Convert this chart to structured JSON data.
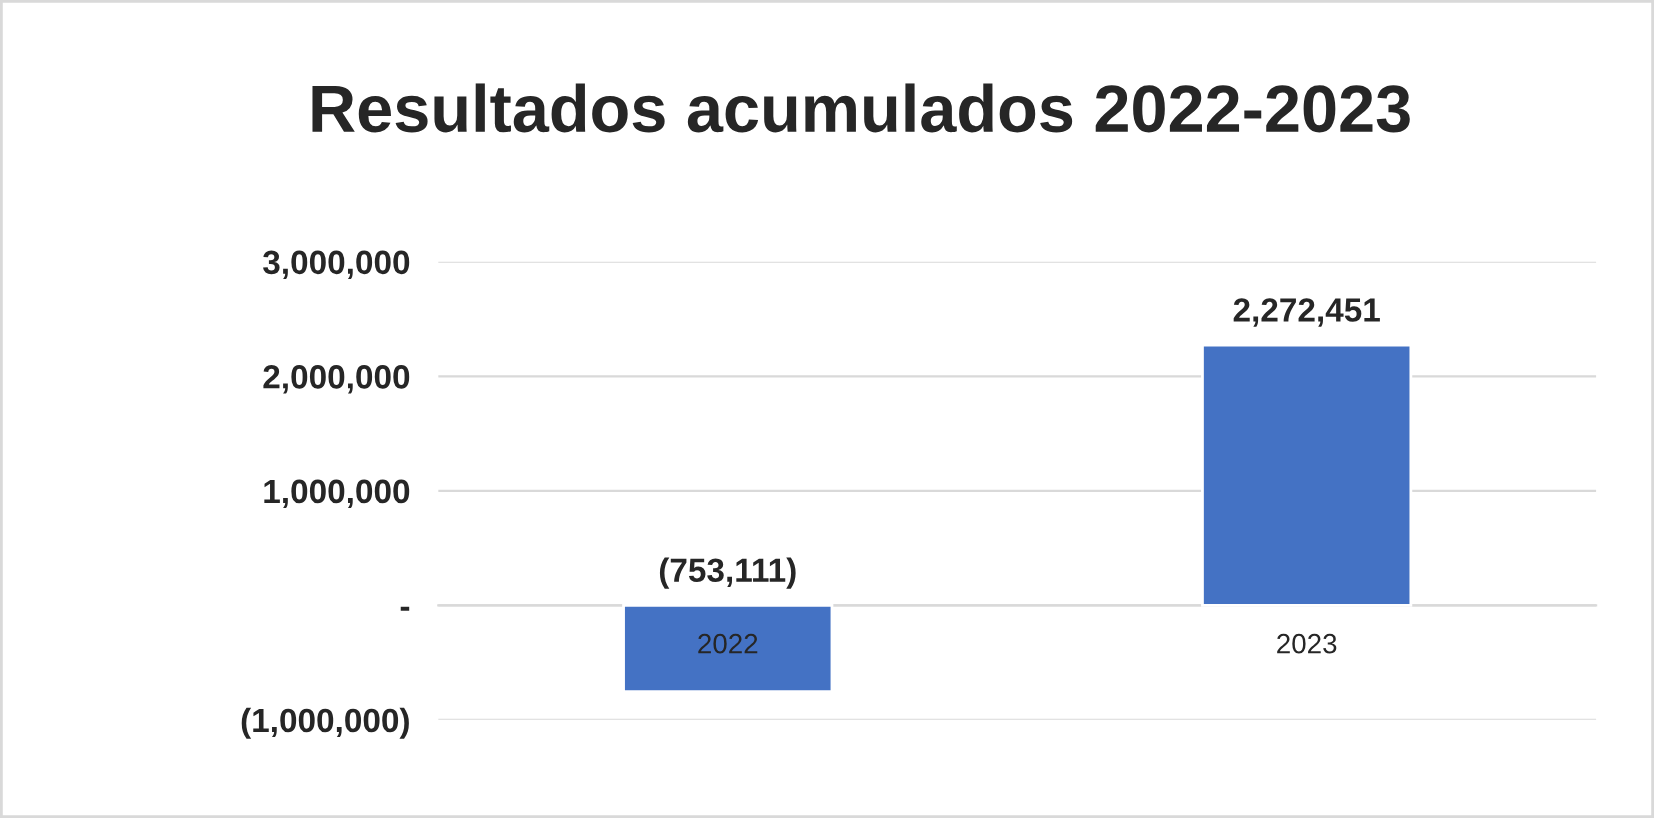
{
  "chart_data": {
    "type": "bar",
    "title": "Resultados acumulados 2022-2023",
    "categories": [
      "2022",
      "2023"
    ],
    "values": [
      -753111,
      2272451
    ],
    "color": "#4472c4",
    "value_labels": [
      "(753,111)",
      "2,272,451"
    ],
    "ylim": [
      -1000000,
      3000000
    ],
    "yticks": [
      {
        "value": -1000000,
        "label": "(1,000,000)"
      },
      {
        "value": 0,
        "label": "-"
      },
      {
        "value": 1000000,
        "label": "1,000,000"
      },
      {
        "value": 2000000,
        "label": "2,000,000"
      },
      {
        "value": 3000000,
        "label": "3,000,000"
      }
    ],
    "grid": "y",
    "legend": false
  }
}
